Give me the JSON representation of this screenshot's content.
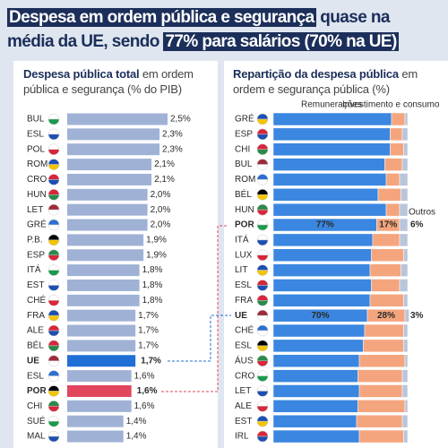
{
  "chart_data": [
    {
      "type": "bar",
      "orientation": "horizontal",
      "title_bold": "Despesa pública total",
      "title_rest": "em ordem pública e segurança (% do PIB)",
      "categories": [
        "BUL",
        "ESL",
        "POL",
        "ROM",
        "CRO",
        "HUN",
        "LET",
        "GRÉ",
        "P.B.",
        "ESP",
        "ITÁ",
        "EST",
        "CHÉ",
        "FRA",
        "ALE",
        "BÉL",
        "UE",
        "ESL",
        "POR",
        "CHI",
        "SUÉ",
        "MAL"
      ],
      "values": [
        2.5,
        2.3,
        2.3,
        2.1,
        2.1,
        2.0,
        2.0,
        2.0,
        1.9,
        1.9,
        1.8,
        1.8,
        1.8,
        1.7,
        1.7,
        1.7,
        1.7,
        1.6,
        1.6,
        1.6,
        1.4,
        1.4
      ],
      "value_labels": [
        "2,5%",
        "2,3%",
        "2,3%",
        "2,1%",
        "2,1%",
        "2,0%",
        "2,0%",
        "2,0%",
        "1,9%",
        "1,9%",
        "1,8%",
        "1,8%",
        "1,8%",
        "1,7%",
        "1,7%",
        "1,7%",
        "1,7%",
        "1,6%",
        "1,6%",
        "1,6%",
        "1,4%",
        "1,4%"
      ],
      "color": "#9fb2d6",
      "highlight_colors": {
        "16": "#1f6fd6",
        "18": "#e1465c"
      },
      "xlim": [
        0,
        2.5
      ]
    },
    {
      "type": "stacked_bar",
      "orientation": "horizontal",
      "title_bold": "Repartição da despesa pública",
      "title_rest": "em ordem e segurança pública (%)",
      "categories": [
        "GRÉ",
        "ESP",
        "CHI",
        "BUL",
        "ROM",
        "BÉL",
        "HUN",
        "POR",
        "ITÁ",
        "LUX",
        "LIT",
        "ESL",
        "FRA",
        "UE",
        "CHÉ",
        "ESL",
        "ÁUS",
        "CRO",
        "LET",
        "ALE",
        "EST",
        "IRL"
      ],
      "series": [
        {
          "name": "Remunerações",
          "color": "#3a86e0",
          "values": [
            88,
            87,
            87,
            83,
            84,
            78,
            84,
            77,
            74,
            73,
            72,
            73,
            72,
            70,
            68,
            67,
            64,
            63,
            64,
            63,
            62,
            64
          ],
          "value_labels": [
            null,
            null,
            null,
            null,
            null,
            null,
            null,
            "77%",
            null,
            null,
            null,
            null,
            null,
            "70%",
            null,
            null,
            null,
            null,
            null,
            null,
            null,
            null
          ]
        },
        {
          "name": "Investimento e consumo",
          "color": "#f5a57d",
          "values": [
            10,
            9,
            10,
            13,
            10,
            17,
            10,
            17,
            20,
            24,
            23,
            21,
            25,
            28,
            29,
            30,
            34,
            33,
            32,
            35,
            34,
            33
          ],
          "value_labels": [
            null,
            null,
            null,
            null,
            null,
            null,
            null,
            "17%",
            null,
            null,
            null,
            null,
            null,
            "28%",
            null,
            null,
            null,
            null,
            null,
            null,
            null,
            null
          ]
        },
        {
          "name": "Outros",
          "color": "#b9c5da",
          "values": [
            2,
            4,
            3,
            4,
            6,
            5,
            6,
            6,
            6,
            3,
            5,
            6,
            3,
            3,
            3,
            3,
            2,
            4,
            4,
            2,
            4,
            3
          ],
          "value_labels": [
            null,
            null,
            null,
            null,
            null,
            null,
            null,
            "6%",
            null,
            null,
            null,
            null,
            null,
            "3%",
            null,
            null,
            null,
            null,
            null,
            null,
            null,
            null
          ]
        }
      ],
      "highlight_rows": {
        "7": "#e1465c",
        "13": "#1f6fd6"
      },
      "xlim": [
        0,
        100
      ]
    }
  ]
}
